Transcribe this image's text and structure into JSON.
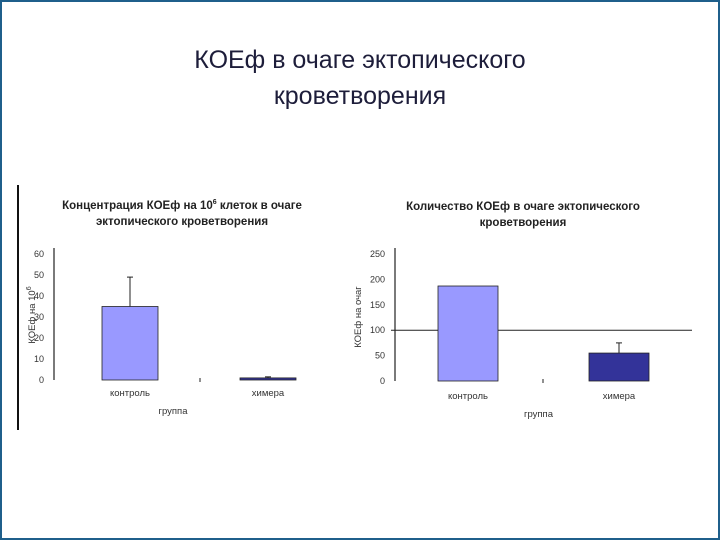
{
  "slide": {
    "title_line1": "КОЕф в очаге эктопического",
    "title_line2": "кроветворения"
  },
  "colors": {
    "frame": "#1f5f8b",
    "bar_light": "#9999ff",
    "bar_dark": "#333399",
    "text": "#1d1d3a"
  },
  "chart_data": [
    {
      "type": "bar",
      "title_parts": [
        "Концентрация КОЕф на 10",
        "6",
        " клеток в очаге",
        "эктопического кроветворения"
      ],
      "categories": [
        "контроль",
        "",
        "химера"
      ],
      "values": [
        35,
        0,
        1
      ],
      "errors": [
        14,
        0,
        0.5
      ],
      "bar_colors": [
        "#9999ff",
        "#9999ff",
        "#333399"
      ],
      "xlabel": "группа",
      "ylabel_parts": [
        "КОЕф на 10",
        "6"
      ],
      "ylim": [
        0,
        60
      ],
      "yticks": [
        0,
        10,
        20,
        30,
        40,
        50,
        60
      ]
    },
    {
      "type": "bar",
      "title_parts": [
        "Количество КОЕф  в очаге эктопического",
        "кроветворения"
      ],
      "categories": [
        "контроль",
        "",
        "химера"
      ],
      "values": [
        187,
        0,
        55
      ],
      "errors": [
        0,
        0,
        20
      ],
      "bar_colors": [
        "#9999ff",
        "#9999ff",
        "#333399"
      ],
      "xlabel": "группа",
      "ylabel": "КОЕф на очаг",
      "ylim": [
        0,
        250
      ],
      "yticks": [
        0,
        50,
        100,
        150,
        200,
        250
      ],
      "reference_line": 100
    }
  ]
}
